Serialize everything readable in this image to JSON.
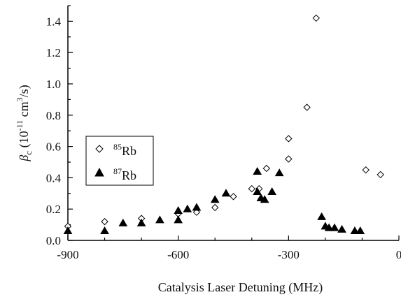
{
  "chart_data": {
    "type": "scatter",
    "xlabel": "Catalysis Laser Detuning (MHz)",
    "ylabel": {
      "symbol": "β",
      "subscript": "c",
      "open": " (10",
      "exponent": "-11",
      "unit": " cm",
      "unit_exponent": "3",
      "close": "/s)"
    },
    "xlim": [
      -900,
      0
    ],
    "ylim": [
      0,
      1.5
    ],
    "x_ticks": [
      -900,
      -600,
      -300,
      0
    ],
    "x_tick_labels": [
      "-900",
      "-600",
      "-300",
      "0"
    ],
    "y_ticks": [
      0.0,
      0.2,
      0.4,
      0.6,
      0.8,
      1.0,
      1.2,
      1.4
    ],
    "y_tick_labels": [
      "0.0",
      "0.2",
      "0.4",
      "0.6",
      "0.8",
      "1.0",
      "1.2",
      "1.4"
    ],
    "grid": false,
    "legend_position": "middle-left",
    "series": [
      {
        "name": "85Rb",
        "label_sup": "85",
        "label_base": "Rb",
        "marker": "open-diamond",
        "color": "#000000",
        "points": [
          [
            -900,
            0.09
          ],
          [
            -800,
            0.12
          ],
          [
            -700,
            0.14
          ],
          [
            -600,
            0.17
          ],
          [
            -550,
            0.18
          ],
          [
            -500,
            0.21
          ],
          [
            -450,
            0.28
          ],
          [
            -400,
            0.33
          ],
          [
            -380,
            0.33
          ],
          [
            -360,
            0.46
          ],
          [
            -300,
            0.52
          ],
          [
            -300,
            0.65
          ],
          [
            -250,
            0.85
          ],
          [
            -225,
            1.42
          ],
          [
            -90,
            0.45
          ],
          [
            -50,
            0.42
          ]
        ]
      },
      {
        "name": "87Rb",
        "label_sup": "87",
        "label_base": "Rb",
        "marker": "filled-triangle",
        "color": "#000000",
        "points": [
          [
            -900,
            0.06
          ],
          [
            -800,
            0.06
          ],
          [
            -750,
            0.11
          ],
          [
            -700,
            0.11
          ],
          [
            -650,
            0.13
          ],
          [
            -600,
            0.13
          ],
          [
            -600,
            0.19
          ],
          [
            -575,
            0.2
          ],
          [
            -550,
            0.21
          ],
          [
            -500,
            0.26
          ],
          [
            -470,
            0.3
          ],
          [
            -385,
            0.31
          ],
          [
            -385,
            0.44
          ],
          [
            -375,
            0.27
          ],
          [
            -365,
            0.26
          ],
          [
            -345,
            0.31
          ],
          [
            -325,
            0.43
          ],
          [
            -210,
            0.15
          ],
          [
            -200,
            0.09
          ],
          [
            -190,
            0.08
          ],
          [
            -175,
            0.08
          ],
          [
            -155,
            0.07
          ],
          [
            -120,
            0.06
          ],
          [
            -105,
            0.06
          ]
        ]
      }
    ]
  }
}
